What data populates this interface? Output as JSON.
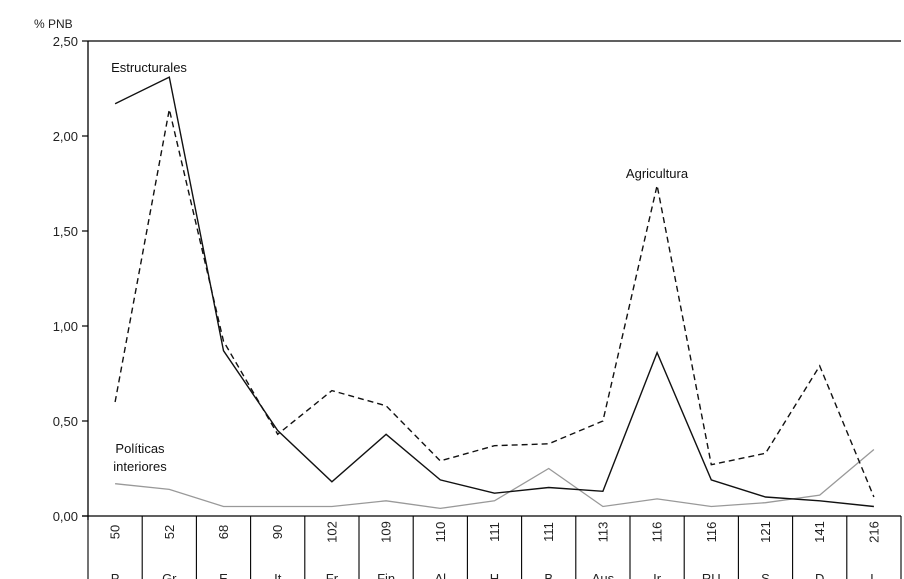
{
  "chart_data": {
    "type": "line",
    "ylabel": "% PNB",
    "ylim": [
      0,
      2.5
    ],
    "y_ticks": [
      "0,00",
      "0,50",
      "1,00",
      "1,50",
      "2,00",
      "2,50"
    ],
    "categories": [
      "P",
      "Gr",
      "E",
      "It",
      "Fr",
      "Fin",
      "Al",
      "H",
      "B",
      "Aus",
      "Ir",
      "RU",
      "S",
      "D",
      "L"
    ],
    "category_codes": [
      "50",
      "52",
      "68",
      "90",
      "102",
      "109",
      "110",
      "111",
      "111",
      "113",
      "116",
      "116",
      "121",
      "141",
      "216"
    ],
    "series": [
      {
        "name": "Estructurales",
        "style": "solid",
        "color": "#111111",
        "values": [
          2.17,
          2.31,
          0.87,
          0.45,
          0.18,
          0.43,
          0.19,
          0.12,
          0.15,
          0.13,
          0.86,
          0.19,
          0.1,
          0.08,
          0.05
        ]
      },
      {
        "name": "Agricultura",
        "style": "dashed",
        "color": "#111111",
        "values": [
          0.6,
          2.14,
          0.92,
          0.43,
          0.66,
          0.58,
          0.29,
          0.37,
          0.38,
          0.5,
          1.74,
          0.27,
          0.33,
          0.79,
          0.1
        ]
      },
      {
        "name": "Políticas interiores",
        "style": "solid",
        "color": "#999999",
        "values": [
          0.17,
          0.14,
          0.05,
          0.05,
          0.05,
          0.08,
          0.04,
          0.08,
          0.25,
          0.05,
          0.09,
          0.05,
          0.07,
          0.11,
          0.35
        ]
      }
    ],
    "annotations": [
      {
        "series": "Estructurales",
        "lines": [
          "Estructurales"
        ]
      },
      {
        "series": "Agricultura",
        "lines": [
          "Agricultura"
        ]
      },
      {
        "series": "Políticas interiores",
        "lines": [
          "Políticas",
          "interiores"
        ]
      }
    ],
    "grid": false
  }
}
